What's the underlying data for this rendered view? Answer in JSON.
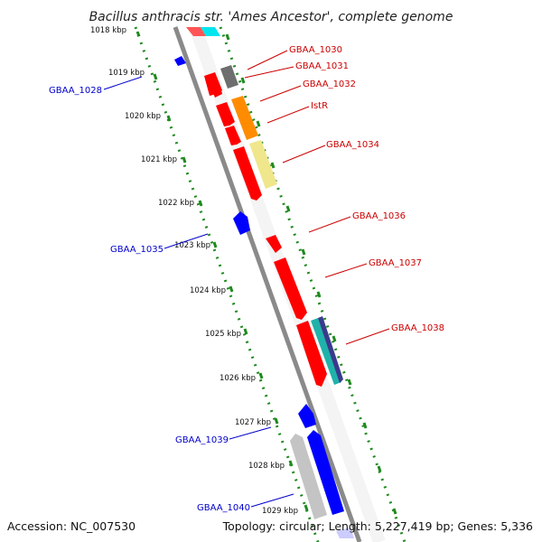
{
  "title": "Bacillus anthracis str. 'Ames Ancestor', complete genome",
  "accession": "Accession: NC_007530",
  "summary": "Topology: circular; Length: 5,227,419 bp; Genes: 5,336",
  "colors": {
    "backbone": "#8a8a8a",
    "ruler_dots": "#1f8a1f",
    "forward_strand": "#ff0000",
    "reverse_strand": "#0000ff",
    "pseudo_gene": "#707070",
    "orange_feature": "#ff8c00",
    "khaki_feature": "#f0e68c",
    "cyan_feature": "#00ced1",
    "light_gray_feature": "#c0c0c0",
    "label_forward": "#cc0000",
    "label_reverse": "#0000cc"
  },
  "ruler": [
    "1018 kbp",
    "1019 kbp",
    "1020 kbp",
    "1021 kbp",
    "1022 kbp",
    "1023 kbp",
    "1024 kbp",
    "1025 kbp",
    "1026 kbp",
    "1027 kbp",
    "1028 kbp",
    "1029 kbp"
  ],
  "genes_right": [
    "GBAA_1030",
    "GBAA_1031",
    "GBAA_1032",
    "IstR",
    "GBAA_1034",
    "GBAA_1036",
    "GBAA_1037",
    "GBAA_1038"
  ],
  "genes_left": [
    "GBAA_1028",
    "GBAA_1035",
    "GBAA_1039",
    "GBAA_1040"
  ]
}
